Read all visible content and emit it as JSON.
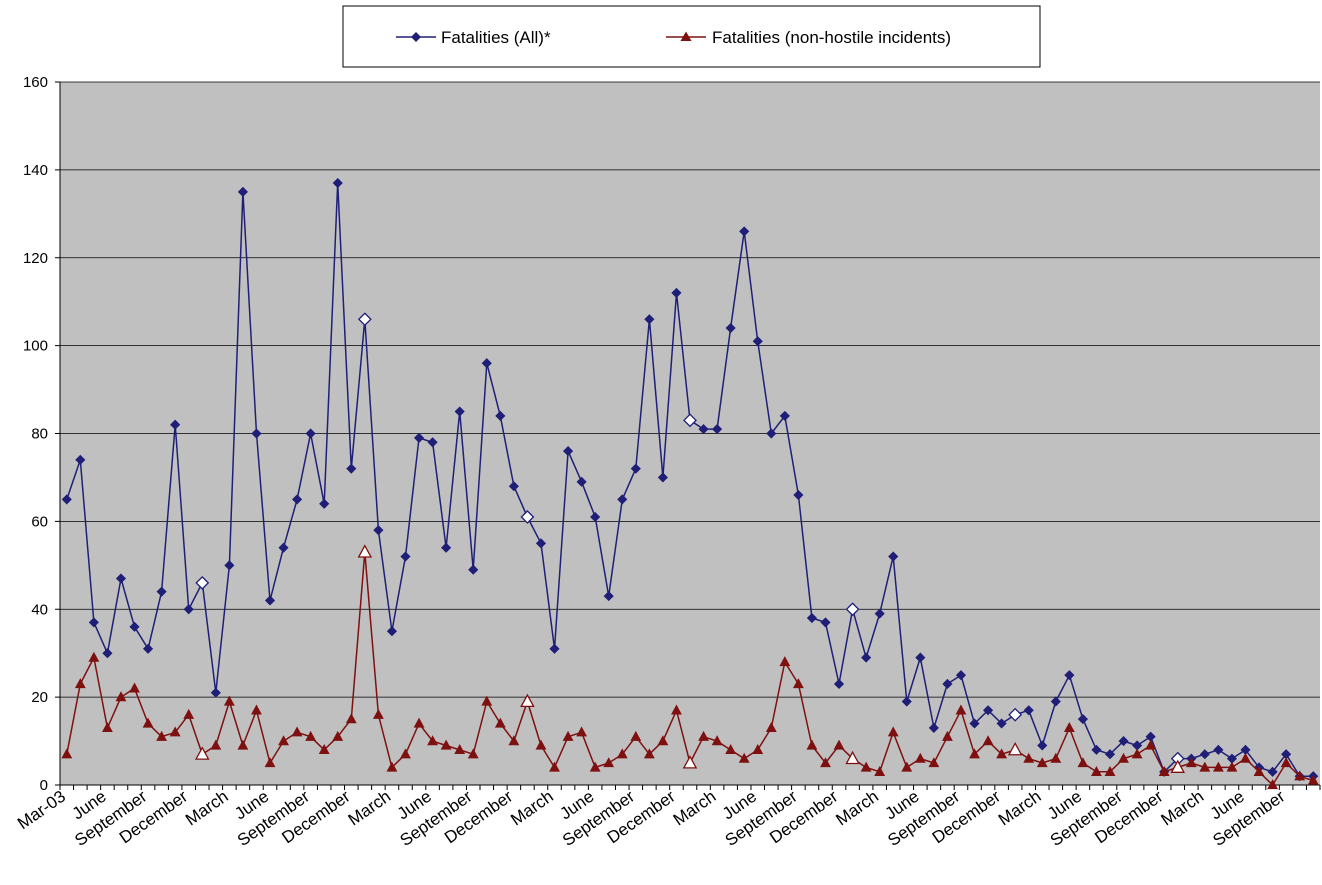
{
  "chart_data": {
    "type": "line",
    "title": "",
    "xlabel": "",
    "ylabel": "",
    "ylim": [
      0,
      160
    ],
    "yticks": [
      0,
      20,
      40,
      60,
      80,
      100,
      120,
      140,
      160
    ],
    "grid": true,
    "legend_position": "top-center",
    "plot_background": "#c0c0c0",
    "x_tick_labels": [
      "Mar-03",
      "June",
      "September",
      "December",
      "March",
      "June",
      "September",
      "December",
      "March",
      "June",
      "September",
      "December",
      "March",
      "June",
      "September",
      "December",
      "March",
      "June",
      "September",
      "December",
      "March",
      "June",
      "September",
      "December",
      "March",
      "June",
      "September",
      "December",
      "March",
      "June",
      "September"
    ],
    "series": [
      {
        "name": "Fatalities (All)*",
        "color": "#1f1f78",
        "marker": "diamond",
        "values": [
          65,
          74,
          37,
          30,
          47,
          36,
          31,
          44,
          82,
          40,
          46,
          21,
          50,
          135,
          80,
          42,
          54,
          65,
          80,
          64,
          137,
          72,
          106,
          58,
          35,
          52,
          79,
          78,
          54,
          85,
          49,
          96,
          84,
          68,
          61,
          55,
          31,
          76,
          69,
          61,
          43,
          65,
          72,
          106,
          70,
          112,
          83,
          81,
          81,
          104,
          126,
          101,
          80,
          84,
          66,
          38,
          37,
          23,
          40,
          29,
          39,
          52,
          19,
          29,
          13,
          23,
          25,
          14,
          17,
          14,
          16,
          17,
          9,
          19,
          25,
          15,
          8,
          7,
          10,
          9,
          11,
          3,
          6,
          6,
          7,
          8,
          6,
          8,
          4,
          3,
          7,
          2,
          2
        ],
        "hollow_points": [
          10,
          22,
          34,
          46,
          58,
          70,
          82
        ]
      },
      {
        "name": "Fatalities (non-hostile incidents)",
        "color": "#7f1010",
        "marker": "triangle",
        "values": [
          7,
          23,
          29,
          13,
          20,
          22,
          14,
          11,
          12,
          16,
          7,
          9,
          19,
          9,
          17,
          5,
          10,
          12,
          11,
          8,
          11,
          15,
          53,
          16,
          4,
          7,
          14,
          10,
          9,
          8,
          7,
          19,
          14,
          10,
          19,
          9,
          4,
          11,
          12,
          4,
          5,
          7,
          11,
          7,
          10,
          17,
          5,
          11,
          10,
          8,
          6,
          8,
          13,
          28,
          23,
          9,
          5,
          9,
          6,
          4,
          3,
          12,
          4,
          6,
          5,
          11,
          17,
          7,
          10,
          7,
          8,
          6,
          5,
          6,
          13,
          5,
          3,
          3,
          6,
          7,
          9,
          3,
          4,
          5,
          4,
          4,
          4,
          6,
          3,
          0,
          5,
          2,
          1
        ],
        "hollow_points": [
          10,
          22,
          34,
          46,
          58,
          70,
          82
        ]
      }
    ]
  }
}
